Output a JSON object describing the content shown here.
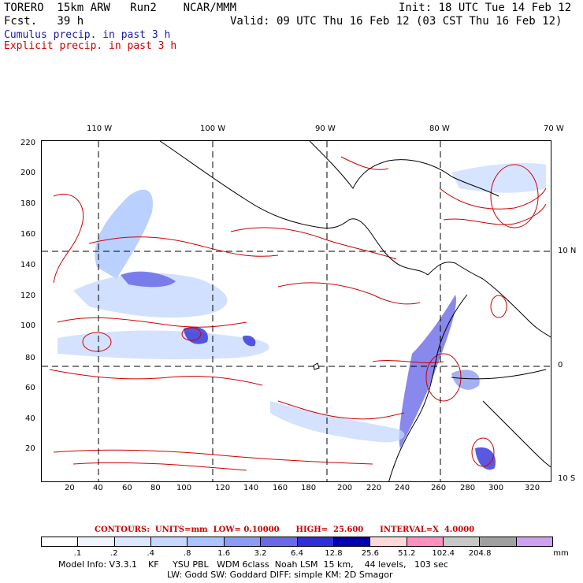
{
  "header": {
    "model": "TORERO  15km ARW   Run2    NCAR/MMM",
    "init": "Init: 18 UTC Tue 14 Feb 12",
    "fcst": "Fcst.   39 h",
    "valid": "Valid: 09 UTC Thu 16 Feb 12 (03 CST Thu 16 Feb 12)",
    "cumulus": "Cumulus precip. in past 3 h",
    "explicit": "Explicit precip. in past 3 h"
  },
  "colors": {
    "cumulus": "#1a1aa8",
    "explicit": "#d00000",
    "grid": "#000000"
  },
  "lon_labels": [
    "110 W",
    "100 W",
    "90 W",
    "80 W",
    "70 W"
  ],
  "lat_labels": [
    "10 N",
    "0",
    "10 S"
  ],
  "y_ticks": [
    "220",
    "200",
    "180",
    "160",
    "140",
    "120",
    "100",
    "80",
    "60",
    "40",
    "20"
  ],
  "x_ticks": [
    "20",
    "40",
    "60",
    "80",
    "100",
    "120",
    "140",
    "160",
    "180",
    "200",
    "220",
    "240",
    "260",
    "280",
    "300",
    "320"
  ],
  "contour_info": "CONTOURS:  UNITS=mm  LOW= 0.10000      HIGH=  25.600      INTERVAL=X  4.0000",
  "colorbar": {
    "colors": [
      "#ffffff",
      "#f0f4ff",
      "#dde6ff",
      "#c6d8ff",
      "#a9c4ff",
      "#8c9cf0",
      "#6a6ae8",
      "#2f2fd8",
      "#0000b0",
      "#ffd8dc",
      "#ff90c0",
      "#c8c8c8",
      "#a0a0a0",
      "#d0a0f0"
    ],
    "labels": [
      ".1",
      ".2",
      ".4",
      ".8",
      "1.6",
      "3.2",
      "6.4",
      "12.8",
      "25.6",
      "51.2",
      "102.4",
      "204.8"
    ],
    "unit": "mm"
  },
  "footer": {
    "line1": "Model Info: V3.3.1    KF     YSU PBL   WDM 6class  Noah LSM  15 km,    44 levels,   103 sec",
    "line2": "LW: Godd SW: Goddard DIFF: simple KM: 2D Smagor"
  }
}
